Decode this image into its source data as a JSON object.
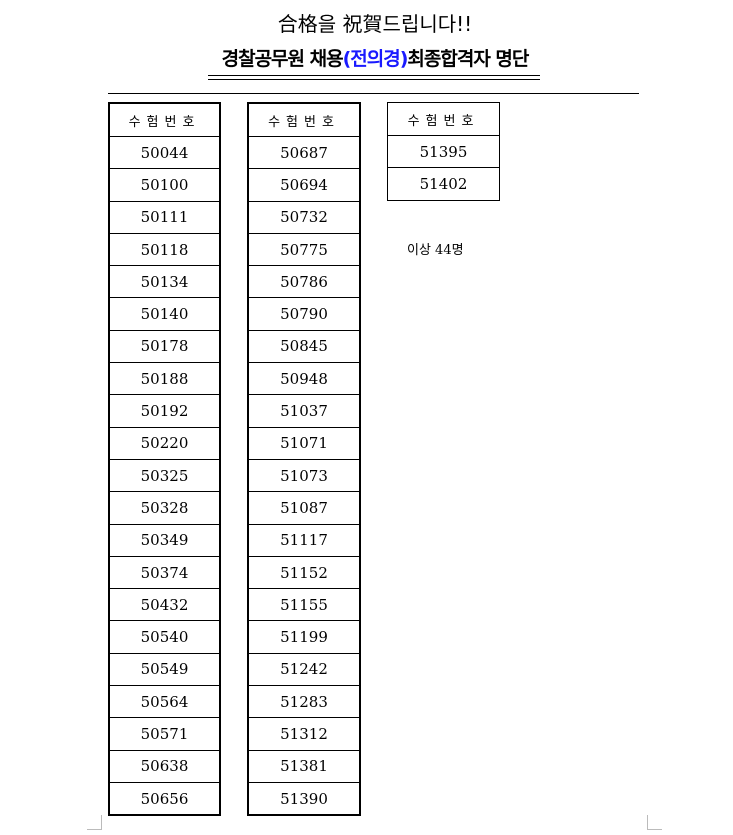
{
  "title": "合格을 祝賀드립니다!!",
  "subtitle": {
    "before": "경찰공무원 채용",
    "highlight": "(전의경)",
    "after": "최종합격자 명단"
  },
  "column_header": "수험번호",
  "columns": [
    [
      "50044",
      "50100",
      "50111",
      "50118",
      "50134",
      "50140",
      "50178",
      "50188",
      "50192",
      "50220",
      "50325",
      "50328",
      "50349",
      "50374",
      "50432",
      "50540",
      "50549",
      "50564",
      "50571",
      "50638",
      "50656"
    ],
    [
      "50687",
      "50694",
      "50732",
      "50775",
      "50786",
      "50790",
      "50845",
      "50948",
      "51037",
      "51071",
      "51073",
      "51087",
      "51117",
      "51152",
      "51155",
      "51199",
      "51242",
      "51283",
      "51312",
      "51381",
      "51390"
    ],
    [
      "51395",
      "51402"
    ]
  ],
  "summary": "이상 44명",
  "colors": {
    "highlight": "#1a1aff"
  }
}
